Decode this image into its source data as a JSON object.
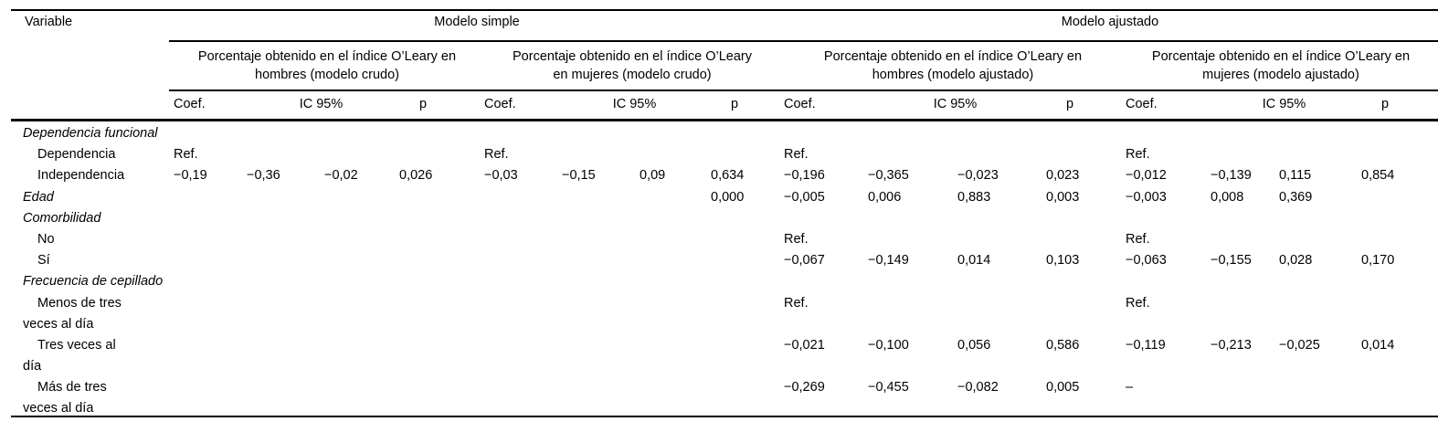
{
  "table": {
    "variable_header": "Variable",
    "top_headers": [
      "Modelo simple",
      "Modelo ajustado"
    ],
    "group_headers": [
      {
        "line1": "Porcentaje obtenido en el índice O’Leary en",
        "line2": "hombres (modelo crudo)"
      },
      {
        "line1": "Porcentaje obtenido en el índice O’Leary",
        "line2": "en mujeres (modelo crudo)"
      },
      {
        "line1": "Porcentaje obtenido en el índice O’Leary en",
        "line2": "hombres (modelo ajustado)"
      },
      {
        "line1": "Porcentaje obtenido en el índice O’Leary en",
        "line2": "mujeres (modelo ajustado)"
      }
    ],
    "col_headers": {
      "coef": "Coef.",
      "ic": "IC 95%",
      "p": "p"
    },
    "rows": [
      {
        "label": "Dependencia funcional",
        "style": "group",
        "cells": [
          "",
          "",
          "",
          "",
          "",
          "",
          "",
          "",
          "",
          "",
          "",
          "",
          "",
          "",
          "",
          ""
        ]
      },
      {
        "label": "Dependencia",
        "style": "item",
        "cells": [
          "Ref.",
          "",
          "",
          "",
          "Ref.",
          "",
          "",
          "",
          "Ref.",
          "",
          "",
          "",
          "Ref.",
          "",
          "",
          ""
        ]
      },
      {
        "label": "Independencia",
        "style": "item",
        "cells": [
          "−0,19",
          "−0,36",
          "−0,02",
          "0,026",
          "−0,03",
          "−0,15",
          "0,09",
          "0,634",
          "−0,196",
          "−0,365",
          "−0,023",
          "0,023",
          "−0,012",
          "−0,139",
          "0,115",
          "0,854"
        ]
      },
      {
        "label": "Edad",
        "style": "group",
        "cells": [
          "",
          "",
          "",
          "",
          "",
          "",
          "",
          "0,000",
          "−0,005",
          "0,006",
          "0,883",
          "0,003",
          "−0,003",
          "0,008",
          "0,369",
          ""
        ]
      },
      {
        "label": "Comorbilidad",
        "style": "group",
        "cells": [
          "",
          "",
          "",
          "",
          "",
          "",
          "",
          "",
          "",
          "",
          "",
          "",
          "",
          "",
          "",
          ""
        ]
      },
      {
        "label": "No",
        "style": "item",
        "cells": [
          "",
          "",
          "",
          "",
          "",
          "",
          "",
          "",
          "Ref.",
          "",
          "",
          "",
          "Ref.",
          "",
          "",
          ""
        ]
      },
      {
        "label": "Sí",
        "style": "item",
        "cells": [
          "",
          "",
          "",
          "",
          "",
          "",
          "",
          "",
          "−0,067",
          "−0,149",
          "0,014",
          "0,103",
          "−0,063",
          "−0,155",
          "0,028",
          "0,170"
        ]
      },
      {
        "label": "Frecuencia de cepillado",
        "style": "group",
        "cells": [
          "",
          "",
          "",
          "",
          "",
          "",
          "",
          "",
          "",
          "",
          "",
          "",
          "",
          "",
          "",
          ""
        ]
      },
      {
        "label": "Menos de tres",
        "style": "item",
        "cells": [
          "",
          "",
          "",
          "",
          "",
          "",
          "",
          "",
          "Ref.",
          "",
          "",
          "",
          "Ref.",
          "",
          "",
          ""
        ]
      },
      {
        "label": "veces al día",
        "style": "cont",
        "cells": [
          "",
          "",
          "",
          "",
          "",
          "",
          "",
          "",
          "",
          "",
          "",
          "",
          "",
          "",
          "",
          ""
        ]
      },
      {
        "label": "Tres veces al",
        "style": "item",
        "cells": [
          "",
          "",
          "",
          "",
          "",
          "",
          "",
          "",
          "−0,021",
          "−0,100",
          "0,056",
          "0,586",
          "−0,119",
          "−0,213",
          "−0,025",
          "0,014"
        ]
      },
      {
        "label": "día",
        "style": "cont",
        "cells": [
          "",
          "",
          "",
          "",
          "",
          "",
          "",
          "",
          "",
          "",
          "",
          "",
          "",
          "",
          "",
          ""
        ]
      },
      {
        "label": "Más de tres",
        "style": "item",
        "cells": [
          "",
          "",
          "",
          "",
          "",
          "",
          "",
          "",
          "−0,269",
          "−0,455",
          "−0,082",
          "0,005",
          "–",
          "",
          "",
          ""
        ]
      },
      {
        "label": "veces al día",
        "style": "cont",
        "cells": [
          "",
          "",
          "",
          "",
          "",
          "",
          "",
          "",
          "",
          "",
          "",
          "",
          "",
          "",
          "",
          ""
        ]
      }
    ]
  }
}
